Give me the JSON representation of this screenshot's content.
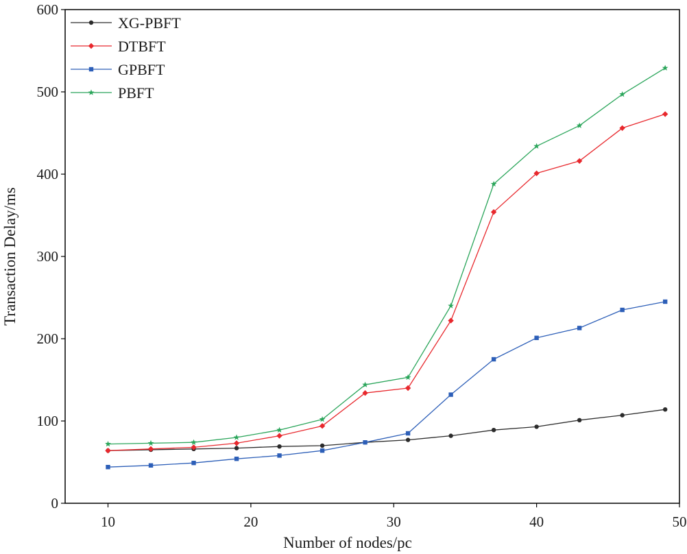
{
  "chart_data": {
    "type": "line",
    "xlabel": "Number of nodes/pc",
    "ylabel": "Transaction Delay/ms",
    "xlim": [
      7,
      50
    ],
    "ylim": [
      0,
      600
    ],
    "xticks": [
      10,
      20,
      30,
      40,
      50
    ],
    "yticks": [
      0,
      100,
      200,
      300,
      400,
      500,
      600
    ],
    "grid": false,
    "legend_position": "top-left",
    "x": [
      10,
      13,
      16,
      19,
      22,
      25,
      28,
      31,
      34,
      37,
      40,
      43,
      46,
      49
    ],
    "series": [
      {
        "name": "XG-PBFT",
        "color": "#2b2b2b",
        "marker": "circle",
        "values": [
          64,
          65,
          66,
          67,
          69,
          70,
          74,
          77,
          82,
          89,
          93,
          101,
          107,
          114
        ]
      },
      {
        "name": "DTBFT",
        "color": "#e8282d",
        "marker": "diamond",
        "values": [
          64,
          66,
          68,
          73,
          82,
          94,
          134,
          140,
          222,
          354,
          401,
          416,
          456,
          473
        ]
      },
      {
        "name": "GPBFT",
        "color": "#2d5fb8",
        "marker": "square",
        "values": [
          44,
          46,
          49,
          54,
          58,
          64,
          74,
          85,
          132,
          175,
          201,
          213,
          235,
          245
        ]
      },
      {
        "name": "PBFT",
        "color": "#2aa55a",
        "marker": "star",
        "values": [
          72,
          73,
          74,
          80,
          89,
          102,
          144,
          153,
          240,
          388,
          434,
          459,
          497,
          529
        ]
      }
    ]
  }
}
